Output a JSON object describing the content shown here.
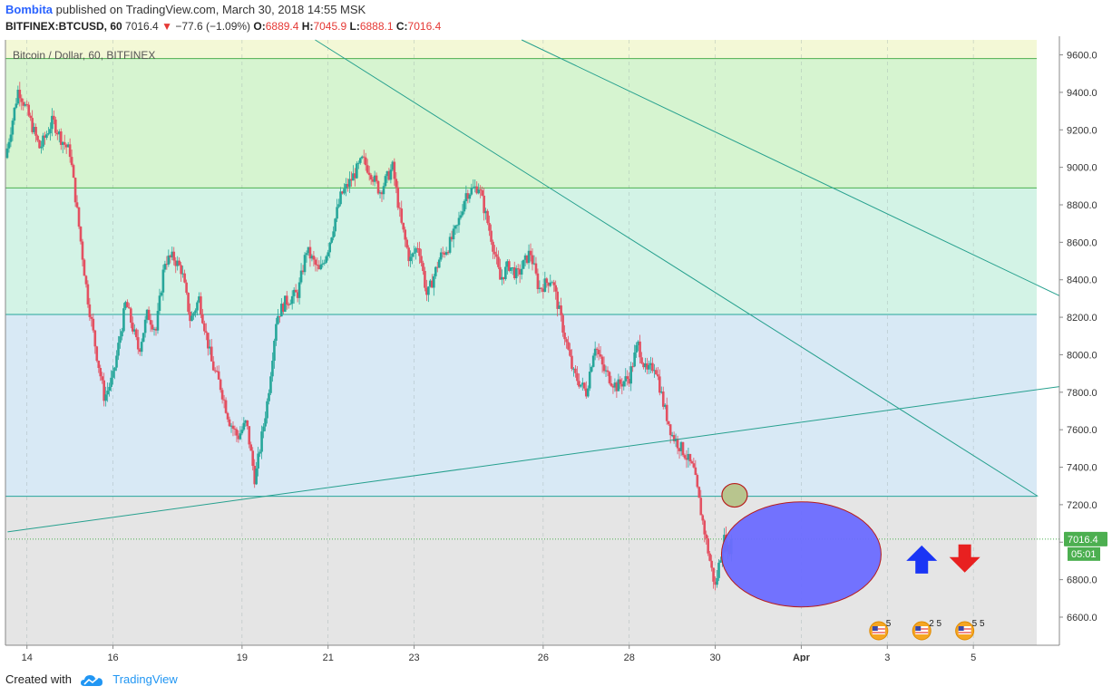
{
  "header": {
    "author": "Bombita",
    "published": "published on TradingView.com, March 30, 2018 14:55 MSK",
    "symbol": "BITFINEX:BTCUSD, 60",
    "last": "7016.4",
    "change": "−77.6 (−1.09%)",
    "o_label": "O:",
    "o": "6889.4",
    "h_label": "H:",
    "h": "7045.9",
    "l_label": "L:",
    "l": "6888.1",
    "c_label": "C:",
    "c": "7016.4"
  },
  "footer": {
    "created_with": "Created with",
    "brand": "TradingView"
  },
  "colors": {
    "zone_top": "#f3f8d6",
    "zone_green": "#d6f4d0",
    "zone_mint": "#d3f3e6",
    "zone_blue": "#d8e9f5",
    "zone_grey": "#e5e5e5",
    "up": "#26a69a",
    "down": "#e35061",
    "trend": "#26a08e",
    "level_green": "#4caf50",
    "level_teal": "#26a69a",
    "ellipse_fill": "#6b6bff",
    "ellipse_stroke": "#b71c1c",
    "small_ellipse": "#b8c58e",
    "arrow_up": "#1a35f5",
    "arrow_down": "#e82020",
    "price_tag": "#4caf50"
  },
  "chart_data": {
    "type": "candlestick",
    "title": "Bitcoin / Dollar, 60, BITFINEX",
    "xlabel": "",
    "ylabel": "",
    "ylim": [
      6450,
      9680
    ],
    "y_ticks": [
      "6600.0",
      "6800.0",
      "7000.0",
      "7200.0",
      "7400.0",
      "7600.0",
      "7800.0",
      "8000.0",
      "8200.0",
      "8400.0",
      "8600.0",
      "8800.0",
      "9000.0",
      "9200.0",
      "9400.0",
      "9600.0"
    ],
    "x_ticks": [
      {
        "label": "14",
        "t": 0.5
      },
      {
        "label": "16",
        "t": 2.5
      },
      {
        "label": "19",
        "t": 5.5
      },
      {
        "label": "21",
        "t": 7.5
      },
      {
        "label": "23",
        "t": 9.5
      },
      {
        "label": "26",
        "t": 12.5
      },
      {
        "label": "28",
        "t": 14.5
      },
      {
        "label": "30",
        "t": 16.5
      },
      {
        "label": "Apr",
        "t": 18.5
      },
      {
        "label": "3",
        "t": 20.5
      },
      {
        "label": "5",
        "t": 22.5
      }
    ],
    "zones": [
      {
        "from": 9580,
        "to": 9680,
        "color": "#f3f8d6"
      },
      {
        "from": 8890,
        "to": 9580,
        "color": "#d6f4d0"
      },
      {
        "from": 8215,
        "to": 8890,
        "color": "#d3f3e6"
      },
      {
        "from": 7245,
        "to": 8215,
        "color": "#d8e9f5"
      },
      {
        "from": 6450,
        "to": 7245,
        "color": "#e5e5e5"
      }
    ],
    "levels": [
      9580,
      8890,
      8215,
      7245
    ],
    "trendlines": [
      {
        "t1": 0.05,
        "p1": 7055,
        "t2": 24.5,
        "p2": 7830
      },
      {
        "t1": 7.2,
        "p1": 9680,
        "t2": 24.0,
        "p2": 7245
      },
      {
        "t1": 12.0,
        "p1": 9680,
        "t2": 24.5,
        "p2": 8315
      }
    ],
    "ohlc_path": [
      [
        0.0,
        9050
      ],
      [
        0.3,
        9420
      ],
      [
        0.5,
        9300
      ],
      [
        0.8,
        9100
      ],
      [
        1.1,
        9250
      ],
      [
        1.3,
        9150
      ],
      [
        1.5,
        9080
      ],
      [
        1.7,
        8700
      ],
      [
        1.9,
        8320
      ],
      [
        2.1,
        8030
      ],
      [
        2.3,
        7770
      ],
      [
        2.5,
        7880
      ],
      [
        2.8,
        8280
      ],
      [
        3.1,
        8020
      ],
      [
        3.3,
        8220
      ],
      [
        3.5,
        8130
      ],
      [
        3.7,
        8500
      ],
      [
        3.9,
        8520
      ],
      [
        4.1,
        8450
      ],
      [
        4.3,
        8180
      ],
      [
        4.5,
        8300
      ],
      [
        4.8,
        7950
      ],
      [
        5.0,
        7830
      ],
      [
        5.2,
        7650
      ],
      [
        5.4,
        7560
      ],
      [
        5.6,
        7640
      ],
      [
        5.8,
        7330
      ],
      [
        6.1,
        7770
      ],
      [
        6.3,
        8200
      ],
      [
        6.5,
        8280
      ],
      [
        6.8,
        8330
      ],
      [
        7.0,
        8560
      ],
      [
        7.3,
        8440
      ],
      [
        7.5,
        8570
      ],
      [
        7.8,
        8850
      ],
      [
        8.0,
        8920
      ],
      [
        8.3,
        9040
      ],
      [
        8.5,
        8970
      ],
      [
        8.7,
        8870
      ],
      [
        9.0,
        9000
      ],
      [
        9.2,
        8700
      ],
      [
        9.4,
        8500
      ],
      [
        9.6,
        8590
      ],
      [
        9.8,
        8310
      ],
      [
        10.1,
        8520
      ],
      [
        10.3,
        8580
      ],
      [
        10.5,
        8680
      ],
      [
        10.7,
        8860
      ],
      [
        11.0,
        8900
      ],
      [
        11.3,
        8620
      ],
      [
        11.5,
        8400
      ],
      [
        11.7,
        8480
      ],
      [
        11.9,
        8420
      ],
      [
        12.2,
        8550
      ],
      [
        12.4,
        8350
      ],
      [
        12.7,
        8410
      ],
      [
        13.0,
        8100
      ],
      [
        13.2,
        7900
      ],
      [
        13.5,
        7800
      ],
      [
        13.7,
        8060
      ],
      [
        13.9,
        7920
      ],
      [
        14.2,
        7830
      ],
      [
        14.5,
        7880
      ],
      [
        14.7,
        8060
      ],
      [
        14.9,
        7900
      ],
      [
        15.1,
        7950
      ],
      [
        15.3,
        7730
      ],
      [
        15.5,
        7570
      ],
      [
        15.8,
        7470
      ],
      [
        16.0,
        7380
      ],
      [
        16.2,
        7120
      ],
      [
        16.4,
        6870
      ],
      [
        16.5,
        6760
      ],
      [
        16.6,
        6900
      ],
      [
        16.7,
        7020
      ],
      [
        16.8,
        6950
      ],
      [
        16.9,
        7016.4
      ]
    ],
    "last_price": 7016.4,
    "last_price_label": "7016.4",
    "countdown": "05:01",
    "event_labels": [
      {
        "label": "5",
        "t": 20.3
      },
      {
        "label": "2 5",
        "t": 21.3
      },
      {
        "label": "5 5",
        "t": 22.3
      }
    ]
  }
}
